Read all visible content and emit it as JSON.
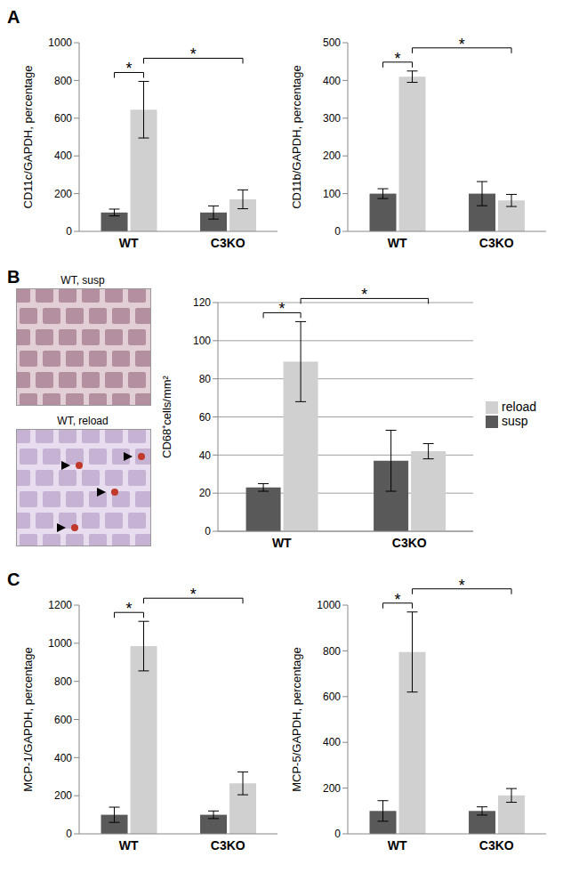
{
  "chart_data": [
    {
      "panel": "A",
      "type": "bar",
      "y_label": "CD11c/GAPDH, percentage",
      "categories": [
        "WT",
        "C3KO"
      ],
      "series": [
        {
          "name": "susp",
          "color": "#595959",
          "values": [
            100,
            100
          ],
          "errors": [
            18,
            35
          ]
        },
        {
          "name": "reload",
          "color": "#d0d0d0",
          "values": [
            645,
            170
          ],
          "errors": [
            150,
            50
          ]
        }
      ],
      "ylim": [
        0,
        1000
      ],
      "yticks": [
        0,
        200,
        400,
        600,
        800,
        1000
      ],
      "grid": false,
      "significance": [
        {
          "from": [
            "WT",
            "susp"
          ],
          "to": [
            "WT",
            "reload"
          ],
          "label": "*"
        },
        {
          "from": [
            "WT",
            "reload"
          ],
          "to": [
            "C3KO",
            "reload"
          ],
          "label": "*"
        }
      ]
    },
    {
      "type": "bar",
      "y_label": "CD11b/GAPDH, percentage",
      "categories": [
        "WT",
        "C3KO"
      ],
      "series": [
        {
          "name": "susp",
          "color": "#595959",
          "values": [
            100,
            100
          ],
          "errors": [
            13,
            32
          ]
        },
        {
          "name": "reload",
          "color": "#d0d0d0",
          "values": [
            410,
            82
          ],
          "errors": [
            15,
            16
          ]
        }
      ],
      "ylim": [
        0,
        500
      ],
      "yticks": [
        0,
        100,
        200,
        300,
        400,
        500
      ],
      "grid": false,
      "significance": [
        {
          "from": [
            "WT",
            "susp"
          ],
          "to": [
            "WT",
            "reload"
          ],
          "label": "*"
        },
        {
          "from": [
            "WT",
            "reload"
          ],
          "to": [
            "C3KO",
            "reload"
          ],
          "label": "*"
        }
      ]
    },
    {
      "panel": "B",
      "type": "bar",
      "y_label": "CD68⁺cells/mm²",
      "categories": [
        "WT",
        "C3KO"
      ],
      "series": [
        {
          "name": "susp",
          "color": "#595959",
          "values": [
            23,
            37
          ],
          "errors": [
            2,
            16
          ]
        },
        {
          "name": "reload",
          "color": "#d0d0d0",
          "values": [
            89,
            42
          ],
          "errors": [
            21,
            4
          ]
        }
      ],
      "ylim": [
        0,
        120
      ],
      "yticks": [
        0,
        20,
        40,
        60,
        80,
        100,
        120
      ],
      "grid": true,
      "legend": "right",
      "significance": [
        {
          "from": [
            "WT",
            "susp"
          ],
          "to": [
            "WT",
            "reload"
          ],
          "label": "*"
        },
        {
          "from": [
            "WT",
            "reload"
          ],
          "to": [
            "C3KO",
            "reload"
          ],
          "label": "*"
        }
      ]
    },
    {
      "panel": "C",
      "type": "bar",
      "y_label": "MCP-1/GAPDH, percentage",
      "categories": [
        "WT",
        "C3KO"
      ],
      "series": [
        {
          "name": "susp",
          "color": "#595959",
          "values": [
            100,
            100
          ],
          "errors": [
            40,
            20
          ]
        },
        {
          "name": "reload",
          "color": "#d0d0d0",
          "values": [
            985,
            265
          ],
          "errors": [
            130,
            60
          ]
        }
      ],
      "ylim": [
        0,
        1200
      ],
      "yticks": [
        0,
        200,
        400,
        600,
        800,
        1000,
        1200
      ],
      "grid": false,
      "significance": [
        {
          "from": [
            "WT",
            "susp"
          ],
          "to": [
            "WT",
            "reload"
          ],
          "label": "*"
        },
        {
          "from": [
            "WT",
            "reload"
          ],
          "to": [
            "C3KO",
            "reload"
          ],
          "label": "*"
        }
      ]
    },
    {
      "type": "bar",
      "y_label": "MCP-5/GAPDH, percentage",
      "categories": [
        "WT",
        "C3KO"
      ],
      "series": [
        {
          "name": "susp",
          "color": "#595959",
          "values": [
            100,
            100
          ],
          "errors": [
            45,
            18
          ]
        },
        {
          "name": "reload",
          "color": "#d0d0d0",
          "values": [
            795,
            168
          ],
          "errors": [
            175,
            30
          ]
        }
      ],
      "ylim": [
        0,
        1000
      ],
      "yticks": [
        0,
        200,
        400,
        600,
        800,
        1000
      ],
      "grid": false,
      "significance": [
        {
          "from": [
            "WT",
            "susp"
          ],
          "to": [
            "WT",
            "reload"
          ],
          "label": "*"
        },
        {
          "from": [
            "WT",
            "reload"
          ],
          "to": [
            "C3KO",
            "reload"
          ],
          "label": "*"
        }
      ]
    }
  ],
  "images": [
    {
      "label": "WT, susp"
    },
    {
      "label": "WT, reload"
    }
  ]
}
